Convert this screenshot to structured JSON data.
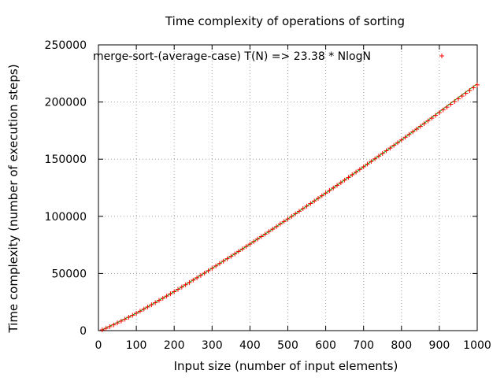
{
  "chart_data": {
    "type": "scatter",
    "title": "Time complexity of operations of sorting",
    "xlabel": "Input size (number of input elements)",
    "ylabel": "Time complexity (number of execution steps)",
    "xlim": [
      0,
      1000
    ],
    "ylim": [
      0,
      250000
    ],
    "x_ticks": [
      0,
      100,
      200,
      300,
      400,
      500,
      600,
      700,
      800,
      900,
      1000
    ],
    "y_ticks": [
      0,
      50000,
      100000,
      150000,
      200000,
      250000
    ],
    "grid": true,
    "legend_position": "top-right",
    "series": [
      {
        "name": "merge-sort-(average-case) T(N) => 23.38 * NlogN",
        "style": "plus-markers",
        "color": "#ff0000",
        "x": [
          10,
          20,
          30,
          40,
          50,
          60,
          70,
          80,
          90,
          100,
          110,
          120,
          130,
          140,
          150,
          160,
          170,
          180,
          190,
          200,
          210,
          220,
          230,
          240,
          250,
          260,
          270,
          280,
          290,
          300,
          310,
          320,
          330,
          340,
          350,
          360,
          370,
          380,
          390,
          400,
          410,
          420,
          430,
          440,
          450,
          460,
          470,
          480,
          490,
          500,
          510,
          520,
          530,
          540,
          550,
          560,
          570,
          580,
          590,
          600,
          610,
          620,
          630,
          640,
          650,
          660,
          670,
          680,
          690,
          700,
          710,
          720,
          730,
          740,
          750,
          760,
          770,
          780,
          790,
          800,
          810,
          820,
          830,
          840,
          850,
          860,
          870,
          880,
          890,
          900,
          910,
          920,
          930,
          940,
          950,
          960,
          970,
          980,
          990,
          1000
        ],
        "y": [
          700,
          2000,
          3500,
          5000,
          6700,
          8300,
          10000,
          11700,
          13400,
          15200,
          17000,
          18800,
          20700,
          22600,
          24400,
          26400,
          28300,
          30200,
          32200,
          34100,
          36100,
          38100,
          40100,
          42100,
          44200,
          46200,
          48300,
          50300,
          52400,
          54500,
          56600,
          58700,
          60800,
          62900,
          65000,
          67100,
          69300,
          71400,
          73600,
          75700,
          77900,
          80100,
          82300,
          84400,
          86600,
          88800,
          91000,
          93300,
          95500,
          97700,
          99900,
          102200,
          104400,
          106700,
          108900,
          111200,
          113400,
          115700,
          118000,
          120300,
          122600,
          124800,
          127100,
          129400,
          131700,
          134000,
          136400,
          138700,
          141000,
          143300,
          145700,
          148000,
          150300,
          152700,
          155000,
          157400,
          159700,
          162100,
          164400,
          166800,
          169200,
          171600,
          174000,
          176300,
          178700,
          181100,
          183500,
          185900,
          188300,
          190700,
          193100,
          195500,
          198000,
          200400,
          202800,
          205200,
          207600,
          210100,
          212500,
          215000
        ]
      },
      {
        "style": "line",
        "color": "#00aa00",
        "x": [
          10,
          100,
          200,
          300,
          400,
          500,
          600,
          700,
          800,
          850,
          900,
          950,
          1000
        ],
        "y": [
          700,
          15200,
          34100,
          54500,
          75700,
          97700,
          120300,
          143300,
          166800,
          178900,
          191500,
          203800,
          216000
        ]
      }
    ]
  }
}
